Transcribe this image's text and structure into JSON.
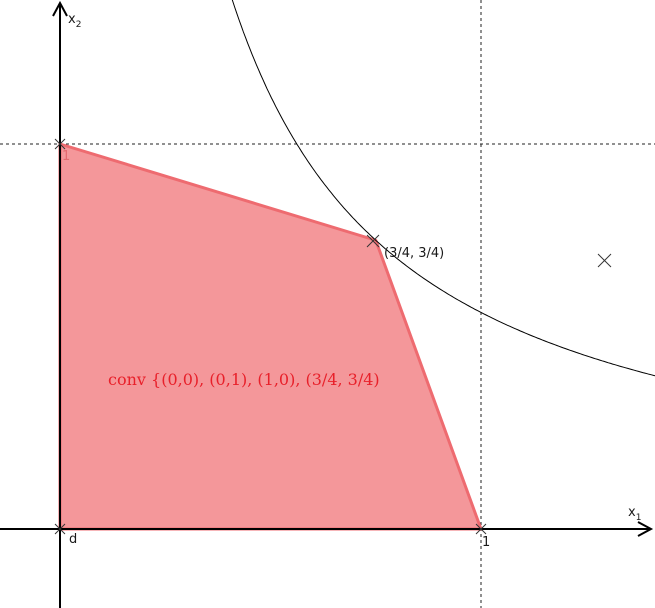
{
  "axes": {
    "x": {
      "name": "x",
      "subscript": "1",
      "tick_one": "1"
    },
    "y": {
      "name": "x",
      "subscript": "2",
      "tick_one": "1"
    },
    "origin_label": "d"
  },
  "hull": {
    "label": "conv {(0,0), (0,1), (1,0), (3/4, 3/4)",
    "vertices": [
      [
        0,
        0
      ],
      [
        0,
        1
      ],
      [
        0.75,
        0.75
      ],
      [
        1,
        0
      ]
    ],
    "fill_color": "#f4979a",
    "stroke_color": "#ee6b70"
  },
  "point_label": "(3/4, 3/4)",
  "outside_point": {
    "x": 1.3,
    "y": 0.7,
    "marker": "x-mark"
  },
  "curve": {
    "equation": "x1 * x2 = 9/16",
    "color": "#000000"
  },
  "grid_lines": {
    "x": 1,
    "y": 1,
    "style": "dashed"
  }
}
